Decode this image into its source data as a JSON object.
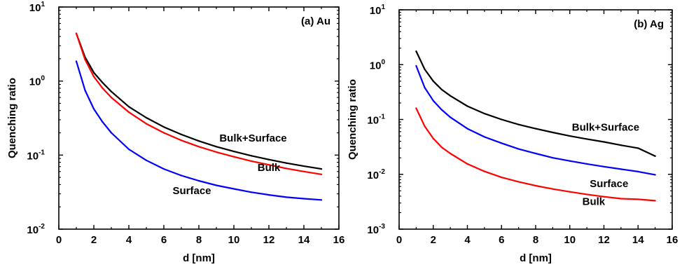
{
  "colors": {
    "bulk_surface": "#000000",
    "bulk": "#ff0000",
    "surface": "#0000ff",
    "axis": "#000000",
    "background": "#ffffff"
  },
  "chart_data": [
    {
      "type": "line",
      "panel_label": "(a)  Au",
      "xlabel": "d   [nm]",
      "ylabel": "Quenching ratio",
      "xlim": [
        0,
        16
      ],
      "ylim": [
        0.01,
        10
      ],
      "yscale": "log",
      "xticks": [
        0,
        2,
        4,
        6,
        8,
        10,
        12,
        14,
        16
      ],
      "yticks": [
        {
          "base": "10",
          "exp": "-2",
          "value": 0.01
        },
        {
          "base": "10",
          "exp": "-1",
          "value": 0.1
        },
        {
          "base": "10",
          "exp": "0",
          "value": 1
        },
        {
          "base": "10",
          "exp": "1",
          "value": 10
        }
      ],
      "grid": false,
      "series": [
        {
          "name": "Bulk+Surface",
          "color": "#000000",
          "x": [
            1,
            1.5,
            2,
            2.5,
            3,
            4,
            5,
            6,
            7,
            8,
            9,
            10,
            11,
            12,
            13,
            14,
            15
          ],
          "y": [
            4.4,
            2.1,
            1.3,
            0.95,
            0.72,
            0.45,
            0.32,
            0.24,
            0.19,
            0.155,
            0.13,
            0.112,
            0.098,
            0.087,
            0.078,
            0.071,
            0.065
          ]
        },
        {
          "name": "Bulk",
          "color": "#ff0000",
          "x": [
            1,
            1.5,
            2,
            2.5,
            3,
            4,
            5,
            6,
            7,
            8,
            9,
            10,
            11,
            12,
            13,
            14,
            15
          ],
          "y": [
            4.4,
            1.95,
            1.15,
            0.8,
            0.6,
            0.38,
            0.265,
            0.2,
            0.158,
            0.13,
            0.11,
            0.095,
            0.083,
            0.074,
            0.066,
            0.06,
            0.055
          ]
        },
        {
          "name": "Surface",
          "color": "#0000ff",
          "x": [
            1,
            1.5,
            2,
            2.5,
            3,
            4,
            5,
            6,
            7,
            8,
            9,
            10,
            11,
            12,
            13,
            14,
            15
          ],
          "y": [
            1.85,
            0.75,
            0.42,
            0.28,
            0.2,
            0.12,
            0.085,
            0.065,
            0.053,
            0.045,
            0.039,
            0.035,
            0.0315,
            0.029,
            0.027,
            0.0258,
            0.0248
          ]
        }
      ],
      "annotations": [
        {
          "text": "Bulk+Surface",
          "x": 11.1,
          "y": 0.17
        },
        {
          "text": "Bulk",
          "x": 12.0,
          "y": 0.068
        },
        {
          "text": "Surface",
          "x": 7.6,
          "y": 0.033
        }
      ]
    },
    {
      "type": "line",
      "panel_label": "(b)  Ag",
      "xlabel": "d   [nm]",
      "ylabel": "Quenching ratio",
      "xlim": [
        0,
        16
      ],
      "ylim": [
        0.001,
        10
      ],
      "yscale": "log",
      "xticks": [
        0,
        2,
        4,
        6,
        8,
        10,
        12,
        14,
        16
      ],
      "yticks": [
        {
          "base": "10",
          "exp": "-3",
          "value": 0.001
        },
        {
          "base": "10",
          "exp": "-2",
          "value": 0.01
        },
        {
          "base": "10",
          "exp": "-1",
          "value": 0.1
        },
        {
          "base": "10",
          "exp": "0",
          "value": 1
        },
        {
          "base": "10",
          "exp": "1",
          "value": 10
        }
      ],
      "grid": false,
      "series": [
        {
          "name": "Bulk+Surface",
          "color": "#000000",
          "x": [
            1,
            1.5,
            2,
            2.5,
            3,
            4,
            5,
            6,
            7,
            8,
            9,
            10,
            11,
            12,
            13,
            14,
            15
          ],
          "y": [
            1.75,
            0.82,
            0.5,
            0.35,
            0.27,
            0.175,
            0.128,
            0.1,
            0.081,
            0.068,
            0.058,
            0.05,
            0.044,
            0.039,
            0.034,
            0.03,
            0.0215
          ]
        },
        {
          "name": "Surface",
          "color": "#0000ff",
          "x": [
            1,
            1.5,
            2,
            2.5,
            3,
            4,
            5,
            6,
            7,
            8,
            9,
            10,
            11,
            12,
            13,
            14,
            15
          ],
          "y": [
            0.95,
            0.38,
            0.22,
            0.15,
            0.11,
            0.068,
            0.048,
            0.037,
            0.029,
            0.024,
            0.02,
            0.0175,
            0.0155,
            0.0138,
            0.0124,
            0.0112,
            0.0098
          ]
        },
        {
          "name": "Bulk",
          "color": "#ff0000",
          "x": [
            1,
            1.5,
            2,
            2.5,
            3,
            4,
            5,
            6,
            7,
            8,
            9,
            10,
            11,
            12,
            13,
            14,
            15
          ],
          "y": [
            0.16,
            0.075,
            0.045,
            0.031,
            0.024,
            0.0155,
            0.0113,
            0.0088,
            0.0073,
            0.0062,
            0.0054,
            0.0048,
            0.0043,
            0.0039,
            0.0036,
            0.0035,
            0.0033
          ]
        }
      ],
      "annotations": [
        {
          "text": "Bulk+Surface",
          "x": 12.1,
          "y": 0.072
        },
        {
          "text": "Surface",
          "x": 12.3,
          "y": 0.0068
        },
        {
          "text": "Bulk",
          "x": 11.4,
          "y": 0.0032
        }
      ]
    }
  ]
}
